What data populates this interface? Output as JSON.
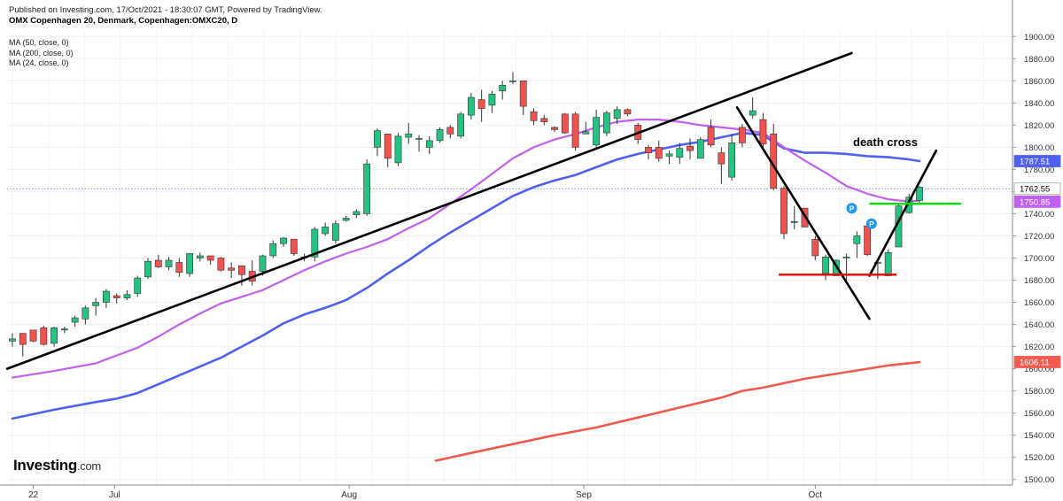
{
  "header": {
    "published": "Published on Investing.com, 17/Oct/2021 - 18:30:07 GMT, Powered by TradingView.",
    "symbol": "OMX Copenhagen 20, Denmark, Copenhagen:OMXC20, D"
  },
  "ma_labels": [
    "MA (50, close, 0)",
    "MA (200, close, 0)",
    "MA (24, close, 0)"
  ],
  "logo": {
    "text": "Investing",
    "suffix": ".com"
  },
  "annotation": "death cross",
  "colors": {
    "up": "#26c281",
    "down": "#ef5350",
    "wick": "#333333",
    "ma24": "#c060f0",
    "ma50": "#5060f0",
    "ma200": "#f05a50",
    "green_line": "#00dd00",
    "red_line": "#ee0000",
    "trend": "#000000",
    "last_price": "#7a8ecc",
    "badge": "#2196f3"
  },
  "chart_data": {
    "type": "candlestick",
    "ylim": [
      1495,
      1905
    ],
    "y_ticks": [
      "1900.00",
      "1880.00",
      "1860.00",
      "1840.00",
      "1820.00",
      "1800.00",
      "1780.00",
      "1760.00",
      "1740.00",
      "1720.00",
      "1700.00",
      "1680.00",
      "1660.00",
      "1640.00",
      "1620.00",
      "1600.00",
      "1580.00",
      "1560.00",
      "1540.00",
      "1520.00",
      "1500.00"
    ],
    "x_ticks": [
      {
        "label": "22",
        "i": 2
      },
      {
        "label": "Jul",
        "i": 9.8
      },
      {
        "label": "Aug",
        "i": 32.3
      },
      {
        "label": "Sep",
        "i": 54.8
      },
      {
        "label": "Oct",
        "i": 77
      }
    ],
    "candles": [
      [
        1625,
        1632,
        1620,
        1627
      ],
      [
        1632,
        1632,
        1611,
        1622
      ],
      [
        1635,
        1635,
        1624,
        1625
      ],
      [
        1637,
        1639,
        1621,
        1622
      ],
      [
        1623,
        1638,
        1620,
        1637
      ],
      [
        1635,
        1638,
        1632,
        1636
      ],
      [
        1642,
        1648,
        1638,
        1646
      ],
      [
        1645,
        1657,
        1640,
        1655
      ],
      [
        1657,
        1664,
        1648,
        1660
      ],
      [
        1660,
        1672,
        1655,
        1670
      ],
      [
        1666,
        1668,
        1659,
        1664
      ],
      [
        1664,
        1671,
        1662,
        1667
      ],
      [
        1668,
        1684,
        1665,
        1682
      ],
      [
        1683,
        1700,
        1681,
        1697
      ],
      [
        1698,
        1703,
        1691,
        1692
      ],
      [
        1692,
        1701,
        1689,
        1698
      ],
      [
        1696,
        1700,
        1683,
        1687
      ],
      [
        1686,
        1704,
        1683,
        1704
      ],
      [
        1700,
        1705,
        1697,
        1702
      ],
      [
        1702,
        1702,
        1694,
        1698
      ],
      [
        1700,
        1701,
        1688,
        1689
      ],
      [
        1691,
        1696,
        1682,
        1689
      ],
      [
        1693,
        1693,
        1675,
        1685
      ],
      [
        1688,
        1698,
        1675,
        1679
      ],
      [
        1688,
        1703,
        1684,
        1702
      ],
      [
        1702,
        1716,
        1700,
        1713
      ],
      [
        1713,
        1719,
        1710,
        1718
      ],
      [
        1717,
        1717,
        1702,
        1704
      ],
      [
        1701,
        1704,
        1697,
        1701
      ],
      [
        1701,
        1728,
        1697,
        1726
      ],
      [
        1722,
        1732,
        1720,
        1728
      ],
      [
        1716,
        1734,
        1713,
        1731
      ],
      [
        1734,
        1738,
        1733,
        1736
      ],
      [
        1739,
        1744,
        1736,
        1742
      ],
      [
        1740,
        1789,
        1738,
        1785
      ],
      [
        1800,
        1817,
        1792,
        1815
      ],
      [
        1812,
        1812,
        1782,
        1790
      ],
      [
        1786,
        1813,
        1783,
        1810
      ],
      [
        1809,
        1822,
        1803,
        1812
      ],
      [
        1808,
        1811,
        1796,
        1808
      ],
      [
        1800,
        1810,
        1794,
        1806
      ],
      [
        1806,
        1818,
        1804,
        1816
      ],
      [
        1818,
        1820,
        1808,
        1812
      ],
      [
        1810,
        1832,
        1808,
        1830
      ],
      [
        1829,
        1849,
        1825,
        1845
      ],
      [
        1843,
        1852,
        1823,
        1835
      ],
      [
        1838,
        1851,
        1831,
        1848
      ],
      [
        1851,
        1860,
        1843,
        1856
      ],
      [
        1860,
        1868,
        1857,
        1860
      ],
      [
        1860,
        1860,
        1829,
        1837
      ],
      [
        1832,
        1835,
        1820,
        1824
      ],
      [
        1826,
        1829,
        1820,
        1823
      ],
      [
        1818,
        1819,
        1814,
        1816
      ],
      [
        1830,
        1831,
        1812,
        1813
      ],
      [
        1830,
        1832,
        1797,
        1800
      ],
      [
        1812,
        1823,
        1812,
        1814
      ],
      [
        1802,
        1834,
        1800,
        1827
      ],
      [
        1813,
        1833,
        1810,
        1831
      ],
      [
        1826,
        1837,
        1821,
        1834
      ],
      [
        1834,
        1835,
        1828,
        1830
      ],
      [
        1820,
        1822,
        1803,
        1807
      ],
      [
        1800,
        1802,
        1789,
        1795
      ],
      [
        1800,
        1806,
        1787,
        1790
      ],
      [
        1792,
        1797,
        1785,
        1794
      ],
      [
        1791,
        1804,
        1785,
        1799
      ],
      [
        1801,
        1808,
        1789,
        1797
      ],
      [
        1790,
        1809,
        1790,
        1807
      ],
      [
        1818,
        1825,
        1800,
        1802
      ],
      [
        1795,
        1800,
        1767,
        1785
      ],
      [
        1773,
        1812,
        1770,
        1804
      ],
      [
        1818,
        1821,
        1800,
        1804
      ],
      [
        1829,
        1845,
        1826,
        1833
      ],
      [
        1825,
        1831,
        1798,
        1803
      ],
      [
        1812,
        1821,
        1761,
        1763
      ],
      [
        1763,
        1765,
        1717,
        1722
      ],
      [
        1732,
        1747,
        1726,
        1733
      ],
      [
        1745,
        1745,
        1728,
        1728
      ],
      [
        1717,
        1720,
        1698,
        1702
      ],
      [
        1686,
        1703,
        1680,
        1701
      ],
      [
        1684,
        1699,
        1684,
        1698
      ],
      [
        1700,
        1704,
        1680,
        1701
      ],
      [
        1713,
        1724,
        1700,
        1720
      ],
      [
        1729,
        1731,
        1702,
        1703
      ],
      [
        1696,
        1698,
        1681,
        1696
      ],
      [
        1684,
        1708,
        1684,
        1705
      ],
      [
        1710,
        1749,
        1710,
        1747
      ],
      [
        1741,
        1758,
        1740,
        1755
      ],
      [
        1752,
        1765,
        1748,
        1764
      ]
    ],
    "ma24": [
      [
        0,
        1592
      ],
      [
        4,
        1598
      ],
      [
        8,
        1605
      ],
      [
        10,
        1612
      ],
      [
        12,
        1619
      ],
      [
        14,
        1629
      ],
      [
        16,
        1640
      ],
      [
        18,
        1650
      ],
      [
        20,
        1659
      ],
      [
        22,
        1665
      ],
      [
        23,
        1668
      ],
      [
        24,
        1671
      ],
      [
        26,
        1680
      ],
      [
        28,
        1689
      ],
      [
        30,
        1697
      ],
      [
        32,
        1704
      ],
      [
        34,
        1710
      ],
      [
        36,
        1717
      ],
      [
        38,
        1727
      ],
      [
        40,
        1736
      ],
      [
        42,
        1749
      ],
      [
        44,
        1762
      ],
      [
        46,
        1776
      ],
      [
        48,
        1790
      ],
      [
        50,
        1800
      ],
      [
        52,
        1807
      ],
      [
        54,
        1812
      ],
      [
        56,
        1818
      ],
      [
        58,
        1823
      ],
      [
        60,
        1825
      ],
      [
        62,
        1825
      ],
      [
        64,
        1823
      ],
      [
        66,
        1820
      ],
      [
        68,
        1818
      ],
      [
        70,
        1816
      ],
      [
        72,
        1813
      ],
      [
        74,
        1800
      ],
      [
        76,
        1788
      ],
      [
        78,
        1777
      ],
      [
        80,
        1765
      ],
      [
        82,
        1758
      ],
      [
        84,
        1753
      ],
      [
        86,
        1751
      ],
      [
        87,
        1752
      ]
    ],
    "ma50": [
      [
        0,
        1555
      ],
      [
        4,
        1563
      ],
      [
        8,
        1570
      ],
      [
        10,
        1573
      ],
      [
        12,
        1578
      ],
      [
        14,
        1586
      ],
      [
        16,
        1594
      ],
      [
        18,
        1602
      ],
      [
        20,
        1610
      ],
      [
        22,
        1620
      ],
      [
        24,
        1630
      ],
      [
        26,
        1641
      ],
      [
        28,
        1649
      ],
      [
        30,
        1655
      ],
      [
        32,
        1662
      ],
      [
        34,
        1673
      ],
      [
        36,
        1686
      ],
      [
        38,
        1698
      ],
      [
        40,
        1711
      ],
      [
        42,
        1723
      ],
      [
        44,
        1734
      ],
      [
        46,
        1745
      ],
      [
        48,
        1756
      ],
      [
        50,
        1764
      ],
      [
        52,
        1770
      ],
      [
        54,
        1775
      ],
      [
        56,
        1782
      ],
      [
        58,
        1789
      ],
      [
        60,
        1794
      ],
      [
        62,
        1798
      ],
      [
        64,
        1802
      ],
      [
        66,
        1805
      ],
      [
        68,
        1809
      ],
      [
        70,
        1813
      ],
      [
        72,
        1811
      ],
      [
        74,
        1799
      ],
      [
        76,
        1795
      ],
      [
        78,
        1795
      ],
      [
        80,
        1794
      ],
      [
        82,
        1792
      ],
      [
        84,
        1791
      ],
      [
        86,
        1789
      ],
      [
        87,
        1787.5
      ]
    ],
    "ma200": [
      [
        40.6,
        1517
      ],
      [
        44,
        1524
      ],
      [
        48,
        1532
      ],
      [
        52,
        1540
      ],
      [
        56,
        1547
      ],
      [
        60,
        1556
      ],
      [
        64,
        1565
      ],
      [
        68,
        1574
      ],
      [
        70,
        1580
      ],
      [
        72,
        1583
      ],
      [
        74,
        1587
      ],
      [
        76,
        1591
      ],
      [
        78,
        1594
      ],
      [
        80,
        1597
      ],
      [
        82,
        1600
      ],
      [
        84,
        1603
      ],
      [
        87,
        1606
      ]
    ],
    "trend_lines": [
      [
        [
          -0.5,
          1600
        ],
        [
          80.5,
          1885
        ]
      ],
      [
        [
          69.5,
          1836
        ],
        [
          82.2,
          1645
        ]
      ],
      [
        [
          82.2,
          1684
        ],
        [
          88.6,
          1797
        ]
      ]
    ],
    "h_lines": [
      {
        "x": [
          73.5,
          84.8
        ],
        "y": 1685,
        "color": "red_line"
      },
      {
        "x": [
          82.2,
          91
        ],
        "y": 1749,
        "color": "green_line"
      }
    ],
    "last_price": 1762.55,
    "price_tags": [
      {
        "text": "1787.51",
        "y": 1787.51,
        "color": "ma50"
      },
      {
        "text": "1762.55",
        "y": 1762.55,
        "color": "last"
      },
      {
        "text": "1750.85",
        "y": 1750.85,
        "color": "ma24"
      },
      {
        "text": "1606.11",
        "y": 1606.11,
        "color": "ma200"
      }
    ],
    "badges": [
      {
        "i": 80.5,
        "y": 1745,
        "text": "P"
      },
      {
        "i": 82.4,
        "y": 1731,
        "text": "P"
      }
    ]
  }
}
